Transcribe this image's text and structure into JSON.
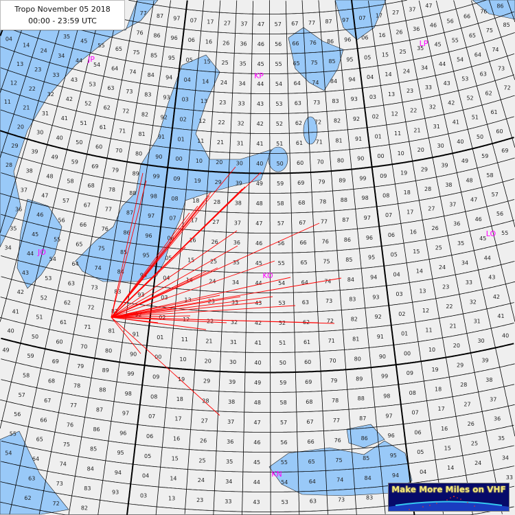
{
  "header": {
    "title": "Tropo November 05 2018",
    "time_range": "00:00 - 23:59 UTC"
  },
  "map": {
    "projection": "conic",
    "colors": {
      "land": "#efefef",
      "water": "#99c9f8",
      "grid": "#000000",
      "paths": "#ff0000",
      "field_labels": "#ff00ff"
    },
    "grid_labels": {
      "lon_digits": [
        "0",
        "1",
        "2",
        "3",
        "4",
        "5",
        "6",
        "7",
        "8",
        "9"
      ],
      "lat_digits": [
        "0",
        "1",
        "2",
        "3",
        "4",
        "5",
        "6",
        "7",
        "8",
        "9"
      ]
    },
    "field_labels": [
      "JP",
      "KP",
      "LP",
      "JO",
      "KO",
      "LO",
      "KN"
    ]
  },
  "logo": {
    "text": "Make More Miles on VHF"
  }
}
